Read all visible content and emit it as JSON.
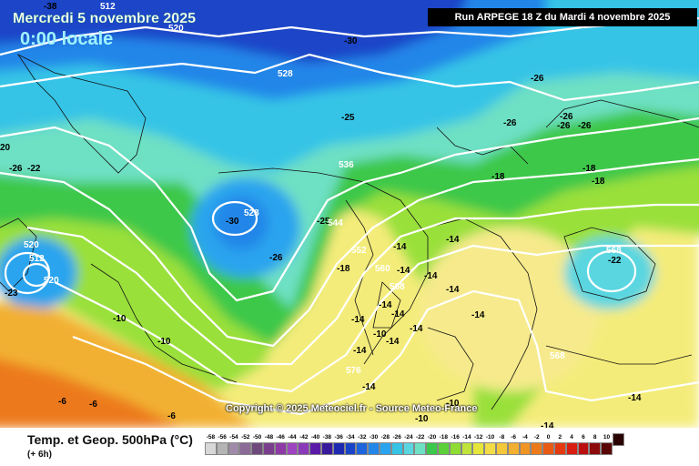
{
  "header": {
    "date_title": "Mercredi 5 novembre 2025",
    "time_title": "0:00 locale",
    "run_info": "Run ARPEGE 18 Z du Mardi 4 novembre 2025"
  },
  "map": {
    "copyright": "Copyright © 2025 Meteociel.fr - Source Meteo-France",
    "isotherm_labels": [
      "-38",
      "-30",
      "-26",
      "-26",
      "-22",
      "-26",
      "-26",
      "-25",
      "-18",
      "-18",
      "-22",
      "-30",
      "-26",
      "-25",
      "-18",
      "-14",
      "-14",
      "-14",
      "-14",
      "-14",
      "-14",
      "-14",
      "-14",
      "-14",
      "-14",
      "-14",
      "-10",
      "-10",
      "-23",
      "-6",
      "-6",
      "-6",
      "-10",
      "-14",
      "-14",
      "20"
    ],
    "geopotential_labels": [
      "512",
      "520",
      "528",
      "536",
      "528",
      "544",
      "552",
      "560",
      "568",
      "576",
      "568",
      "568",
      "520",
      "512",
      "520"
    ],
    "colors": {
      "deep_blue": "#1f3fc8",
      "blue": "#2a86e6",
      "cyan": "#35c4e6",
      "light_cyan": "#7fe3ec",
      "green": "#3cc84a",
      "light_green": "#9ae03a",
      "yellow": "#e6e63a",
      "light_yellow": "#f4ec7a",
      "orange": "#f0a028",
      "deep_orange": "#e46a14"
    }
  },
  "footer": {
    "param_title": "Temp. et Geop. 500hPa (°C)",
    "step": "(+ 6h)",
    "scale": [
      {
        "v": "-58",
        "c": "#d8d8d8"
      },
      {
        "v": "-56",
        "c": "#b4b4b4"
      },
      {
        "v": "-54",
        "c": "#a08ca8"
      },
      {
        "v": "-52",
        "c": "#8c6a98"
      },
      {
        "v": "-50",
        "c": "#6e4a7c"
      },
      {
        "v": "-48",
        "c": "#7a3e8c"
      },
      {
        "v": "-46",
        "c": "#8e3aa6"
      },
      {
        "v": "-44",
        "c": "#9e44c0"
      },
      {
        "v": "-42",
        "c": "#8a3ab8"
      },
      {
        "v": "-40",
        "c": "#5a1aa8"
      },
      {
        "v": "-38",
        "c": "#3a1a9c"
      },
      {
        "v": "-36",
        "c": "#1e2ab0"
      },
      {
        "v": "-34",
        "c": "#1a44c8"
      },
      {
        "v": "-32",
        "c": "#1e64dc"
      },
      {
        "v": "-30",
        "c": "#2486e8"
      },
      {
        "v": "-28",
        "c": "#2aa4ee"
      },
      {
        "v": "-26",
        "c": "#35c4e6"
      },
      {
        "v": "-24",
        "c": "#5ad6e0"
      },
      {
        "v": "-22",
        "c": "#6ee0c4"
      },
      {
        "v": "-20",
        "c": "#3cc84a"
      },
      {
        "v": "-18",
        "c": "#5cd03a"
      },
      {
        "v": "-16",
        "c": "#8edc34"
      },
      {
        "v": "-14",
        "c": "#c0e43a"
      },
      {
        "v": "-12",
        "c": "#e6e63a"
      },
      {
        "v": "-10",
        "c": "#f2dc48"
      },
      {
        "v": "-8",
        "c": "#f4c83a"
      },
      {
        "v": "-6",
        "c": "#f2b030"
      },
      {
        "v": "-4",
        "c": "#f09424"
      },
      {
        "v": "-2",
        "c": "#ec7a1a"
      },
      {
        "v": "0",
        "c": "#e85a14"
      },
      {
        "v": "2",
        "c": "#e43a10"
      },
      {
        "v": "4",
        "c": "#d81e10"
      },
      {
        "v": "6",
        "c": "#bc1010"
      },
      {
        "v": "8",
        "c": "#8c0a0a"
      },
      {
        "v": "10",
        "c": "#5a0606"
      },
      {
        "v": "",
        "c": "#2a0202"
      }
    ]
  }
}
